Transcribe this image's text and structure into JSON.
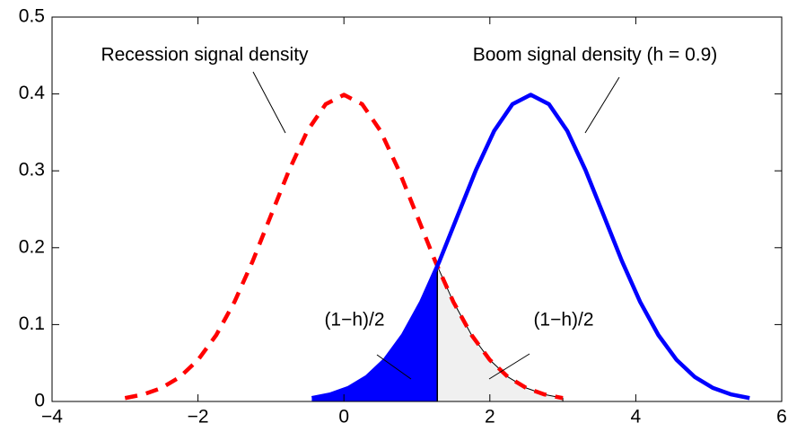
{
  "chart_data": {
    "type": "line",
    "xlim": [
      -4,
      6
    ],
    "ylim": [
      0,
      0.5
    ],
    "xticks": [
      {
        "value": -4,
        "label": "−4"
      },
      {
        "value": -2,
        "label": "−2"
      },
      0,
      2,
      4,
      6
    ],
    "yticks": [
      0,
      0.1,
      0.2,
      0.3,
      0.4,
      0.5
    ],
    "threshold": 1.28,
    "series": [
      {
        "color": "#ff0000",
        "dashed": true,
        "fill": "#f0f0f0",
        "fill_side": "right",
        "x": [
          -3,
          -2.75,
          -2.5,
          -2.25,
          -2,
          -1.75,
          -1.5,
          -1.25,
          -1,
          -0.75,
          -0.5,
          -0.25,
          0,
          0.25,
          0.5,
          0.75,
          1,
          1.25,
          1.5,
          1.75,
          2,
          2.25,
          2.5,
          2.75,
          3
        ],
        "values": [
          0.0044,
          0.0091,
          0.0175,
          0.0317,
          0.054,
          0.0863,
          0.1295,
          0.1826,
          0.242,
          0.3011,
          0.3521,
          0.3867,
          0.3989,
          0.3867,
          0.3521,
          0.3011,
          0.242,
          0.1826,
          0.1295,
          0.0863,
          0.054,
          0.0317,
          0.0175,
          0.0091,
          0.0044
        ]
      },
      {
        "color": "#0000ff",
        "dashed": false,
        "fill": "#0000ff",
        "fill_side": "left",
        "x": [
          -0.44,
          -0.19,
          0.06,
          0.31,
          0.56,
          0.81,
          1.06,
          1.31,
          1.56,
          1.81,
          2.06,
          2.31,
          2.56,
          2.81,
          3.06,
          3.31,
          3.56,
          3.81,
          4.06,
          4.31,
          4.56,
          4.81,
          5.06,
          5.31,
          5.56
        ],
        "values": [
          0.0044,
          0.0091,
          0.0175,
          0.0317,
          0.054,
          0.0863,
          0.1295,
          0.1826,
          0.242,
          0.3011,
          0.3521,
          0.3867,
          0.3989,
          0.3867,
          0.3521,
          0.3011,
          0.242,
          0.1826,
          0.1295,
          0.0863,
          0.054,
          0.0317,
          0.0175,
          0.0091,
          0.0044
        ]
      }
    ],
    "annotations": [
      "Recession signal density",
      "Boom signal density (h = 0.9)",
      "(1−h)/2",
      "(1−h)/2"
    ]
  }
}
